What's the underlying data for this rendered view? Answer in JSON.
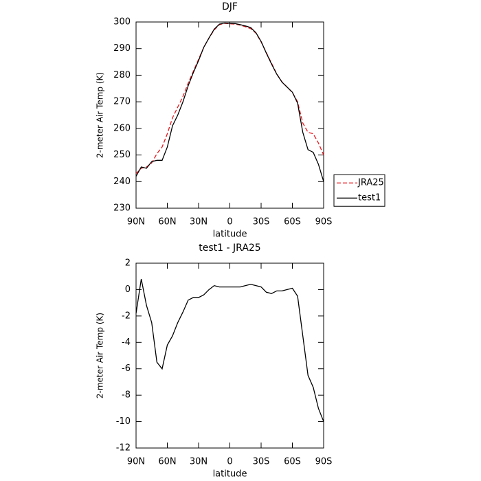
{
  "chart_data": [
    {
      "type": "line",
      "title": "DJF",
      "x_label": "latitude",
      "y_label": "2-meter Air Temp (K)",
      "x": [
        90,
        85,
        80,
        75,
        70,
        65,
        60,
        55,
        50,
        45,
        40,
        35,
        30,
        25,
        20,
        15,
        10,
        5,
        0,
        -5,
        -10,
        -15,
        -20,
        -25,
        -30,
        -35,
        -40,
        -45,
        -50,
        -55,
        -60,
        -65,
        -70,
        -75,
        -80,
        -85,
        -90
      ],
      "series": [
        {
          "name": "JRA25",
          "color": "#e8191e",
          "style": "dashed",
          "values": [
            243,
            245,
            245.5,
            247,
            250.5,
            253,
            258,
            264,
            268,
            272,
            277,
            281.5,
            286,
            290.5,
            294,
            297,
            299,
            299.5,
            299.3,
            299.2,
            298.8,
            298.2,
            297.5,
            295.8,
            292.5,
            288.5,
            284.5,
            280.5,
            277.5,
            275.5,
            273.5,
            270,
            262,
            258.5,
            258,
            254.5,
            250
          ]
        },
        {
          "name": "test1",
          "color": "#000000",
          "style": "solid",
          "values": [
            242,
            245.5,
            245,
            247.5,
            248,
            248,
            253,
            261,
            265,
            270,
            276,
            281,
            285.5,
            290.5,
            294,
            297.3,
            299.2,
            299.6,
            299.5,
            299.4,
            299,
            298.5,
            297.9,
            296,
            292.7,
            288.3,
            284.2,
            280.4,
            277.4,
            275.5,
            273.6,
            269.5,
            258.5,
            252,
            251,
            246.5,
            240
          ]
        }
      ],
      "xlim": [
        90,
        -90
      ],
      "xticks": [
        {
          "value": 90,
          "label": "90N"
        },
        {
          "value": 60,
          "label": "60N"
        },
        {
          "value": 30,
          "label": "30N"
        },
        0,
        {
          "value": -30,
          "label": "30S"
        },
        {
          "value": -60,
          "label": "60S"
        },
        {
          "value": -90,
          "label": "90S"
        }
      ],
      "ylim": [
        230,
        300
      ],
      "yticks": [
        230,
        240,
        250,
        260,
        270,
        280,
        290,
        300
      ],
      "legend": "right"
    },
    {
      "type": "line",
      "title": "test1 - JRA25",
      "x_label": "latitude",
      "y_label": "2-meter Air Temp (K)",
      "x": [
        90,
        85,
        80,
        75,
        70,
        65,
        60,
        55,
        50,
        45,
        40,
        35,
        30,
        25,
        20,
        15,
        10,
        5,
        0,
        -5,
        -10,
        -15,
        -20,
        -25,
        -30,
        -35,
        -40,
        -45,
        -50,
        -55,
        -60,
        -65,
        -70,
        -75,
        -80,
        -85,
        -90
      ],
      "series": [
        {
          "color": "#000000",
          "style": "solid",
          "values": [
            -1.8,
            0.8,
            -1.2,
            -2.5,
            -5.5,
            -6.0,
            -4.2,
            -3.5,
            -2.5,
            -1.7,
            -0.8,
            -0.6,
            -0.6,
            -0.4,
            0.0,
            0.3,
            0.2,
            0.2,
            0.2,
            0.2,
            0.2,
            0.3,
            0.4,
            0.3,
            0.2,
            -0.2,
            -0.3,
            -0.1,
            -0.1,
            0.0,
            0.1,
            -0.5,
            -3.5,
            -6.5,
            -7.4,
            -9.0,
            -10.0
          ]
        }
      ],
      "xlim": [
        90,
        -90
      ],
      "xticks": [
        {
          "value": 90,
          "label": "90N"
        },
        {
          "value": 60,
          "label": "60N"
        },
        {
          "value": 30,
          "label": "30N"
        },
        0,
        {
          "value": -30,
          "label": "30S"
        },
        {
          "value": -60,
          "label": "60S"
        },
        {
          "value": -90,
          "label": "90S"
        }
      ],
      "ylim": [
        -12,
        2
      ],
      "yticks": [
        -12,
        -10,
        -8,
        -6,
        -4,
        -2,
        0,
        2
      ]
    }
  ]
}
